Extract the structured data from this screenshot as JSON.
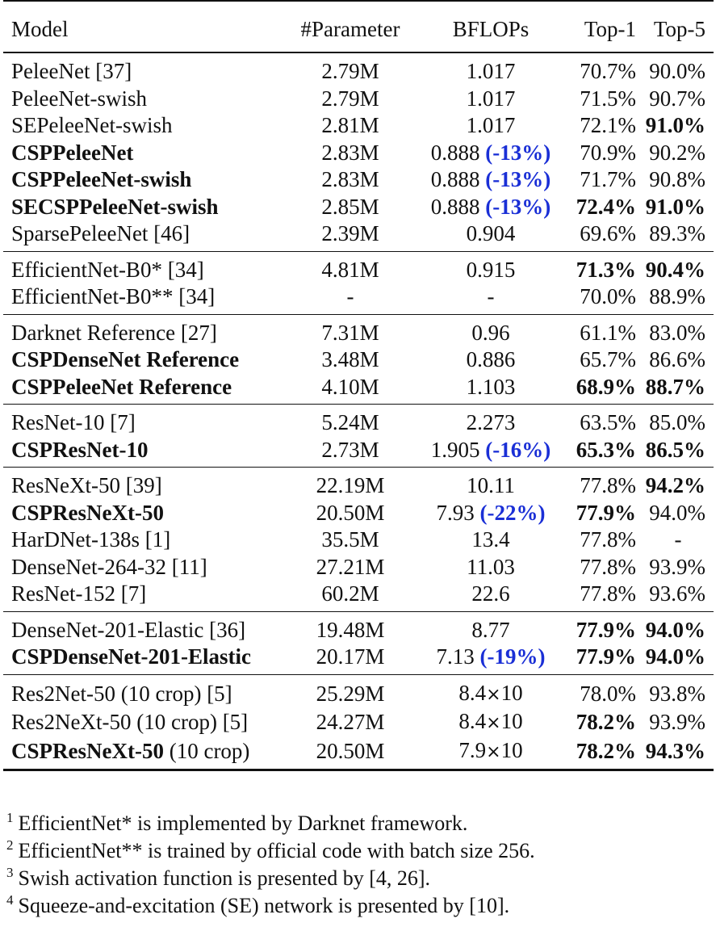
{
  "table": {
    "headers": [
      "Model",
      "#Parameter",
      "BFLOPs",
      "Top-1",
      "Top-5"
    ],
    "groups": [
      [
        {
          "model": "PeleeNet",
          "ref": " [37]",
          "model_bold": false,
          "params": "2.79M",
          "flops": "1.017",
          "flops_delta": "",
          "top1": "70.7%",
          "top1_bold": false,
          "top5": "90.0%",
          "top5_bold": false
        },
        {
          "model": "PeleeNet-swish",
          "ref": "",
          "model_bold": false,
          "params": "2.79M",
          "flops": "1.017",
          "flops_delta": "",
          "top1": "71.5%",
          "top1_bold": false,
          "top5": "90.7%",
          "top5_bold": false
        },
        {
          "model": "SEPeleeNet-swish",
          "ref": "",
          "model_bold": false,
          "params": "2.81M",
          "flops": "1.017",
          "flops_delta": "",
          "top1": "72.1%",
          "top1_bold": false,
          "top5": "91.0%",
          "top5_bold": true
        },
        {
          "model": "CSPPeleeNet",
          "ref": "",
          "model_bold": true,
          "params": "2.83M",
          "flops": "0.888",
          "flops_delta": "(-13%)",
          "top1": "70.9%",
          "top1_bold": false,
          "top5": "90.2%",
          "top5_bold": false
        },
        {
          "model": "CSPPeleeNet-swish",
          "ref": "",
          "model_bold": true,
          "params": "2.83M",
          "flops": "0.888",
          "flops_delta": "(-13%)",
          "top1": "71.7%",
          "top1_bold": false,
          "top5": "90.8%",
          "top5_bold": false
        },
        {
          "model": "SECSPPeleeNet-swish",
          "ref": "",
          "model_bold": true,
          "params": "2.85M",
          "flops": "0.888",
          "flops_delta": "(-13%)",
          "top1": "72.4%",
          "top1_bold": true,
          "top5": "91.0%",
          "top5_bold": true
        },
        {
          "model": "SparsePeleeNet",
          "ref": " [46]",
          "model_bold": false,
          "params": "2.39M",
          "flops": "0.904",
          "flops_delta": "",
          "top1": "69.6%",
          "top1_bold": false,
          "top5": "89.3%",
          "top5_bold": false
        }
      ],
      [
        {
          "model": "EfficientNet-B0*",
          "ref": " [34]",
          "model_bold": false,
          "params": "4.81M",
          "flops": "0.915",
          "flops_delta": "",
          "top1": "71.3%",
          "top1_bold": true,
          "top5": "90.4%",
          "top5_bold": true
        },
        {
          "model": "EfficientNet-B0**",
          "ref": " [34]",
          "model_bold": false,
          "params": "-",
          "flops": "-",
          "flops_delta": "",
          "top1": "70.0%",
          "top1_bold": false,
          "top5": "88.9%",
          "top5_bold": false
        }
      ],
      [
        {
          "model": "Darknet Reference",
          "ref": " [27]",
          "model_bold": false,
          "params": "7.31M",
          "flops": "0.96",
          "flops_delta": "",
          "top1": "61.1%",
          "top1_bold": false,
          "top5": "83.0%",
          "top5_bold": false
        },
        {
          "model": "CSPDenseNet Reference",
          "ref": "",
          "model_bold": true,
          "params": "3.48M",
          "flops": "0.886",
          "flops_delta": "",
          "top1": "65.7%",
          "top1_bold": false,
          "top5": "86.6%",
          "top5_bold": false
        },
        {
          "model": "CSPPeleeNet Reference",
          "ref": "",
          "model_bold": true,
          "params": "4.10M",
          "flops": "1.103",
          "flops_delta": "",
          "top1": "68.9%",
          "top1_bold": true,
          "top5": "88.7%",
          "top5_bold": true
        }
      ],
      [
        {
          "model": "ResNet-10",
          "ref": " [7]",
          "model_bold": false,
          "params": "5.24M",
          "flops": "2.273",
          "flops_delta": "",
          "top1": "63.5%",
          "top1_bold": false,
          "top5": "85.0%",
          "top5_bold": false
        },
        {
          "model": "CSPResNet-10",
          "ref": "",
          "model_bold": true,
          "params": "2.73M",
          "flops": "1.905",
          "flops_delta": "(-16%)",
          "top1": "65.3%",
          "top1_bold": true,
          "top5": "86.5%",
          "top5_bold": true
        }
      ],
      [
        {
          "model": "ResNeXt-50",
          "ref": " [39]",
          "model_bold": false,
          "params": "22.19M",
          "flops": "10.11",
          "flops_delta": "",
          "top1": "77.8%",
          "top1_bold": false,
          "top5": "94.2%",
          "top5_bold": true
        },
        {
          "model": "CSPResNeXt-50",
          "ref": "",
          "model_bold": true,
          "params": "20.50M",
          "flops": "7.93",
          "flops_delta": "(-22%)",
          "top1": "77.9%",
          "top1_bold": true,
          "top5": "94.0%",
          "top5_bold": false
        },
        {
          "model": "HarDNet-138s",
          "ref": " [1]",
          "model_bold": false,
          "params": "35.5M",
          "flops": "13.4",
          "flops_delta": "",
          "top1": "77.8%",
          "top1_bold": false,
          "top5": "-",
          "top5_bold": false
        },
        {
          "model": "DenseNet-264-32",
          "ref": " [11]",
          "model_bold": false,
          "params": "27.21M",
          "flops": "11.03",
          "flops_delta": "",
          "top1": "77.8%",
          "top1_bold": false,
          "top5": "93.9%",
          "top5_bold": false
        },
        {
          "model": "ResNet-152",
          "ref": " [7]",
          "model_bold": false,
          "params": "60.2M",
          "flops": "22.6",
          "flops_delta": "",
          "top1": "77.8%",
          "top1_bold": false,
          "top5": "93.6%",
          "top5_bold": false
        }
      ],
      [
        {
          "model": "DenseNet-201-Elastic",
          "ref": " [36]",
          "model_bold": false,
          "params": "19.48M",
          "flops": "8.77",
          "flops_delta": "",
          "top1": "77.9%",
          "top1_bold": true,
          "top5": "94.0%",
          "top5_bold": true
        },
        {
          "model": "CSPDenseNet-201-Elastic",
          "ref": "",
          "model_bold": true,
          "params": "20.17M",
          "flops": "7.13",
          "flops_delta": "(-19%)",
          "top1": "77.9%",
          "top1_bold": true,
          "top5": "94.0%",
          "top5_bold": true
        }
      ],
      [
        {
          "model": "Res2Net-50",
          "ref": " (10 crop) [5]",
          "model_bold": false,
          "params": "25.29M",
          "flops": "8.4",
          "flops_exp": "10",
          "flops_delta": "",
          "top1": "78.0%",
          "top1_bold": false,
          "top5": "93.8%",
          "top5_bold": false
        },
        {
          "model": "Res2NeXt-50",
          "ref": " (10 crop) [5]",
          "model_bold": false,
          "params": "24.27M",
          "flops": "8.4",
          "flops_exp": "10",
          "flops_delta": "",
          "top1": "78.2%",
          "top1_bold": true,
          "top5": "93.9%",
          "top5_bold": false
        },
        {
          "model": "CSPResNeXt-50",
          "ref": " (10 crop)",
          "model_bold": true,
          "params": "20.50M",
          "flops": "7.9",
          "flops_exp": "10",
          "flops_delta": "",
          "top1": "78.2%",
          "top1_bold": true,
          "top5": "94.3%",
          "top5_bold": true
        }
      ]
    ]
  },
  "footnotes": [
    {
      "mark": "1",
      "text": "EfficientNet* is implemented by Darknet framework."
    },
    {
      "mark": "2",
      "text": "EfficientNet** is trained by official code with batch size 256."
    },
    {
      "mark": "3",
      "text": "Swish activation function is presented by [4, 26]."
    },
    {
      "mark": "4",
      "text": "Squeeze-and-excitation (SE) network is presented by [10]."
    }
  ],
  "colors": {
    "delta": "#1a2fd6",
    "text": "#111111"
  }
}
